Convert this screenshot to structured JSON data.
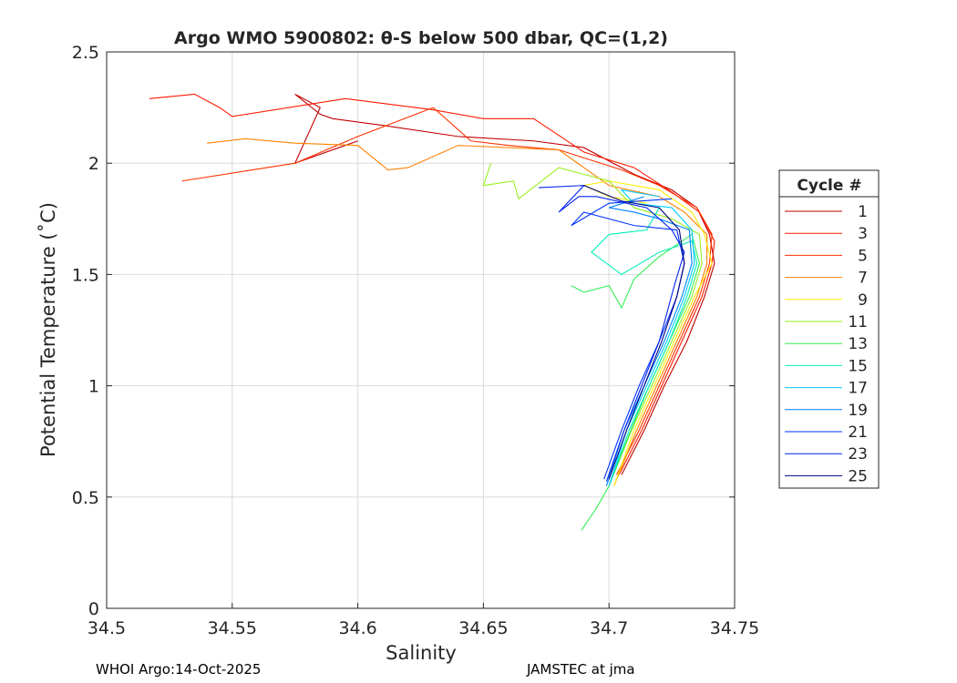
{
  "chart_data": {
    "type": "line",
    "title": "Argo WMO 5900802: θ-S below 500 dbar,  QC=(1,2)",
    "xlabel": "Salinity",
    "ylabel": "Potential Temperature (˚C)",
    "xlim": [
      34.5,
      34.75
    ],
    "ylim": [
      0,
      2.5
    ],
    "xticks": [
      "34.5",
      "34.55",
      "34.6",
      "34.65",
      "34.7",
      "34.75"
    ],
    "yticks": [
      "0",
      "0.5",
      "1",
      "1.5",
      "2",
      "2.5"
    ],
    "grid": true,
    "legend": {
      "title": "Cycle #",
      "placement": "right"
    },
    "series": [
      {
        "name": "1",
        "color": "#c00000",
        "points": [
          [
            34.705,
            0.6
          ],
          [
            34.714,
            0.8
          ],
          [
            34.722,
            1.0
          ],
          [
            34.731,
            1.2
          ],
          [
            34.738,
            1.4
          ],
          [
            34.742,
            1.55
          ],
          [
            34.74,
            1.68
          ],
          [
            34.735,
            1.8
          ],
          [
            34.725,
            1.88
          ],
          [
            34.71,
            1.95
          ],
          [
            34.69,
            2.07
          ],
          [
            34.67,
            2.1
          ],
          [
            34.64,
            2.12
          ],
          [
            34.61,
            2.17
          ],
          [
            34.59,
            2.2
          ],
          [
            34.585,
            2.22
          ],
          [
            34.575,
            2.31
          ],
          [
            34.585,
            2.25
          ],
          [
            34.575,
            2.0
          ],
          [
            34.6,
            2.1
          ]
        ]
      },
      {
        "name": "3",
        "color": "#ff1a00",
        "points": [
          [
            34.704,
            0.6
          ],
          [
            34.713,
            0.8
          ],
          [
            34.721,
            1.0
          ],
          [
            34.729,
            1.2
          ],
          [
            34.737,
            1.4
          ],
          [
            34.741,
            1.55
          ],
          [
            34.742,
            1.65
          ],
          [
            34.736,
            1.78
          ],
          [
            34.725,
            1.87
          ],
          [
            34.71,
            1.98
          ],
          [
            34.69,
            2.05
          ],
          [
            34.67,
            2.2
          ],
          [
            34.65,
            2.2
          ],
          [
            34.63,
            2.24
          ],
          [
            34.595,
            2.29
          ],
          [
            34.55,
            2.21
          ],
          [
            34.545,
            2.25
          ],
          [
            34.535,
            2.31
          ],
          [
            34.517,
            2.29
          ]
        ]
      },
      {
        "name": "5",
        "color": "#ff3300",
        "points": [
          [
            34.703,
            0.6
          ],
          [
            34.712,
            0.8
          ],
          [
            34.72,
            1.0
          ],
          [
            34.728,
            1.2
          ],
          [
            34.736,
            1.4
          ],
          [
            34.74,
            1.55
          ],
          [
            34.741,
            1.68
          ],
          [
            34.735,
            1.8
          ],
          [
            34.72,
            1.9
          ],
          [
            34.705,
            1.97
          ],
          [
            34.68,
            2.06
          ],
          [
            34.66,
            2.08
          ],
          [
            34.645,
            2.1
          ],
          [
            34.63,
            2.25
          ],
          [
            34.6,
            2.12
          ],
          [
            34.575,
            2.0
          ],
          [
            34.53,
            1.92
          ]
        ]
      },
      {
        "name": "7",
        "color": "#ff8000",
        "points": [
          [
            34.702,
            0.55
          ],
          [
            34.711,
            0.8
          ],
          [
            34.719,
            1.0
          ],
          [
            34.727,
            1.2
          ],
          [
            34.735,
            1.4
          ],
          [
            34.739,
            1.55
          ],
          [
            34.739,
            1.68
          ],
          [
            34.73,
            1.78
          ],
          [
            34.72,
            1.85
          ],
          [
            34.7,
            1.9
          ],
          [
            34.68,
            2.06
          ],
          [
            34.64,
            2.08
          ],
          [
            34.62,
            1.98
          ],
          [
            34.612,
            1.97
          ],
          [
            34.6,
            2.08
          ],
          [
            34.575,
            2.09
          ],
          [
            34.555,
            2.11
          ],
          [
            34.54,
            2.09
          ]
        ]
      },
      {
        "name": "9",
        "color": "#ffee00",
        "points": [
          [
            34.702,
            0.55
          ],
          [
            34.71,
            0.8
          ],
          [
            34.718,
            1.0
          ],
          [
            34.726,
            1.2
          ],
          [
            34.734,
            1.4
          ],
          [
            34.741,
            1.55
          ],
          [
            34.738,
            1.68
          ],
          [
            34.733,
            1.78
          ],
          [
            34.72,
            1.88
          ],
          [
            34.7,
            1.92
          ],
          [
            34.69,
            1.9
          ],
          [
            34.7,
            1.85
          ],
          [
            34.715,
            1.82
          ]
        ]
      },
      {
        "name": "11",
        "color": "#99ee22",
        "points": [
          [
            34.7,
            0.55
          ],
          [
            34.709,
            0.8
          ],
          [
            34.717,
            1.0
          ],
          [
            34.725,
            1.2
          ],
          [
            34.733,
            1.4
          ],
          [
            34.737,
            1.55
          ],
          [
            34.736,
            1.68
          ],
          [
            34.725,
            1.75
          ],
          [
            34.71,
            1.8
          ],
          [
            34.7,
            1.92
          ],
          [
            34.68,
            1.98
          ],
          [
            34.664,
            1.84
          ],
          [
            34.662,
            1.92
          ],
          [
            34.65,
            1.9
          ],
          [
            34.653,
            2.0
          ]
        ]
      },
      {
        "name": "13",
        "color": "#33ee55",
        "points": [
          [
            34.689,
            0.35
          ],
          [
            34.695,
            0.45
          ],
          [
            34.7,
            0.55
          ],
          [
            34.708,
            0.78
          ],
          [
            34.716,
            1.0
          ],
          [
            34.724,
            1.2
          ],
          [
            34.732,
            1.4
          ],
          [
            34.736,
            1.55
          ],
          [
            34.733,
            1.68
          ],
          [
            34.72,
            1.58
          ],
          [
            34.71,
            1.48
          ],
          [
            34.705,
            1.35
          ],
          [
            34.7,
            1.45
          ],
          [
            34.69,
            1.42
          ],
          [
            34.685,
            1.45
          ]
        ]
      },
      {
        "name": "15",
        "color": "#00eebb",
        "points": [
          [
            34.7,
            0.55
          ],
          [
            34.708,
            0.8
          ],
          [
            34.716,
            1.0
          ],
          [
            34.724,
            1.2
          ],
          [
            34.731,
            1.4
          ],
          [
            34.735,
            1.55
          ],
          [
            34.733,
            1.65
          ],
          [
            34.72,
            1.6
          ],
          [
            34.705,
            1.5
          ],
          [
            34.693,
            1.6
          ],
          [
            34.7,
            1.68
          ],
          [
            34.715,
            1.7
          ],
          [
            34.72,
            1.8
          ]
        ]
      },
      {
        "name": "17",
        "color": "#00ccff",
        "points": [
          [
            34.7,
            0.55
          ],
          [
            34.707,
            0.8
          ],
          [
            34.715,
            1.0
          ],
          [
            34.723,
            1.2
          ],
          [
            34.73,
            1.4
          ],
          [
            34.734,
            1.55
          ],
          [
            34.733,
            1.7
          ],
          [
            34.725,
            1.8
          ],
          [
            34.71,
            1.82
          ],
          [
            34.705,
            1.88
          ],
          [
            34.72,
            1.85
          ]
        ]
      },
      {
        "name": "19",
        "color": "#0080ff",
        "points": [
          [
            34.699,
            0.55
          ],
          [
            34.706,
            0.8
          ],
          [
            34.714,
            1.0
          ],
          [
            34.722,
            1.2
          ],
          [
            34.729,
            1.4
          ],
          [
            34.733,
            1.55
          ],
          [
            34.732,
            1.7
          ],
          [
            34.72,
            1.75
          ],
          [
            34.71,
            1.78
          ],
          [
            34.7,
            1.8
          ],
          [
            34.714,
            1.85
          ]
        ]
      },
      {
        "name": "21",
        "color": "#0033ff",
        "points": [
          [
            34.698,
            0.58
          ],
          [
            34.705,
            0.8
          ],
          [
            34.712,
            1.0
          ],
          [
            34.72,
            1.2
          ],
          [
            34.727,
            1.4
          ],
          [
            34.73,
            1.55
          ],
          [
            34.727,
            1.7
          ],
          [
            34.71,
            1.72
          ],
          [
            34.69,
            1.78
          ],
          [
            34.685,
            1.72
          ],
          [
            34.7,
            1.82
          ],
          [
            34.725,
            1.84
          ]
        ]
      },
      {
        "name": "23",
        "color": "#0022ee",
        "points": [
          [
            34.699,
            0.57
          ],
          [
            34.706,
            0.8
          ],
          [
            34.713,
            1.0
          ],
          [
            34.72,
            1.2
          ],
          [
            34.726,
            1.45
          ],
          [
            34.73,
            1.6
          ],
          [
            34.725,
            1.7
          ],
          [
            34.715,
            1.8
          ],
          [
            34.695,
            1.85
          ],
          [
            34.688,
            1.85
          ],
          [
            34.68,
            1.78
          ],
          [
            34.69,
            1.9
          ],
          [
            34.672,
            1.89
          ]
        ]
      },
      {
        "name": "25",
        "color": "#000080",
        "points": [
          [
            34.7,
            0.58
          ],
          [
            34.707,
            0.8
          ],
          [
            34.714,
            1.0
          ],
          [
            34.721,
            1.2
          ],
          [
            34.727,
            1.4
          ],
          [
            34.73,
            1.55
          ],
          [
            34.728,
            1.7
          ],
          [
            34.72,
            1.8
          ],
          [
            34.705,
            1.83
          ],
          [
            34.69,
            1.9
          ]
        ]
      }
    ]
  },
  "footer": {
    "left": "WHOI Argo:14-Oct-2025",
    "right": "JAMSTEC at jma"
  }
}
